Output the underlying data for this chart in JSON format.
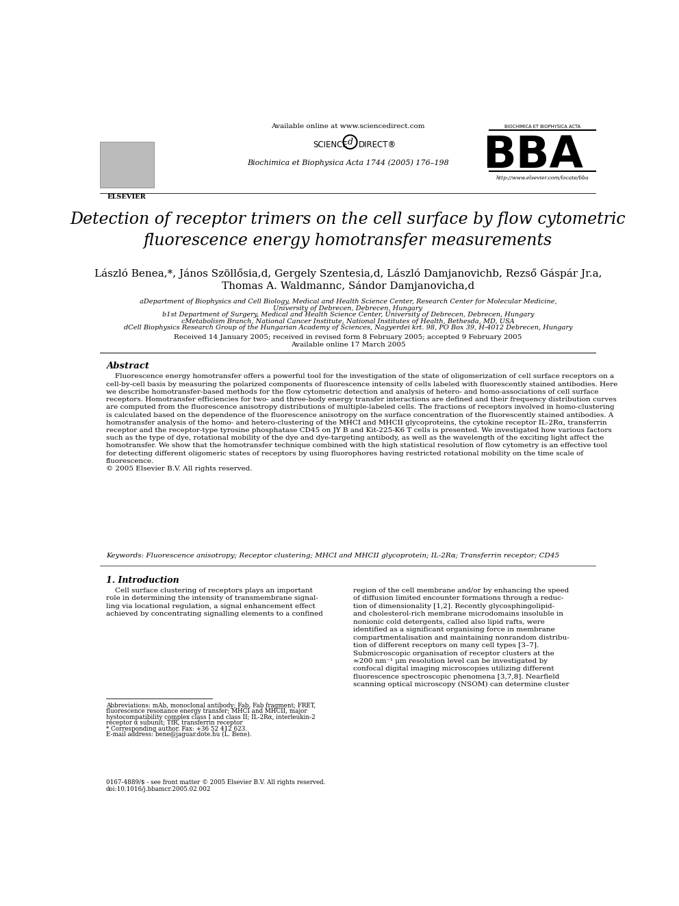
{
  "background_color": "#ffffff",
  "header": {
    "available_online": "Available online at www.sciencedirect.com",
    "journal": "Biochimica et Biophysica Acta 1744 (2005) 176–198",
    "url": "http://www.elsevier.com/locate/bba"
  },
  "title": "Detection of receptor trimers on the cell surface by flow cytometric\nfluorescence energy homotransfer measurements",
  "authors_line1": "László Benea,*, János Szöllősia,d, Gergely Szentesia,d, László Damjanovichb, Rezső Gáspár Jr.a,",
  "authors_line2": "Thomas A. Waldmannc, Sándor Damjanovicha,d",
  "affiliations": [
    "aDepartment of Biophysics and Cell Biology, Medical and Health Science Center, Research Center for Molecular Medicine,",
    "University of Debrecen, Debrecen, Hungary",
    "b1st Department of Surgery, Medical and Health Science Center, University of Debrecen, Debrecen, Hungary",
    "cMetabolism Branch, National Cancer Institute, National Institutes of Health, Bethesda, MD, USA",
    "dCell Biophysics Research Group of the Hungarian Academy of Sciences, Nagyerdei krt. 98, PO Box 39, H-4012 Debrecen, Hungary"
  ],
  "dates_line1": "Received 14 January 2005; received in revised form 8 February 2005; accepted 9 February 2005",
  "dates_line2": "Available online 17 March 2005",
  "abstract_title": "Abstract",
  "abstract_text": "    Fluorescence energy homotransfer offers a powerful tool for the investigation of the state of oligomerization of cell surface receptors on a\ncell-by-cell basis by measuring the polarized components of fluorescence intensity of cells labeled with fluorescently stained antibodies. Here\nwe describe homotransfer-based methods for the flow cytometric detection and analysis of hetero- and homo-associations of cell surface\nreceptors. Homotransfer efficiencies for two- and three-body energy transfer interactions are defined and their frequency distribution curves\nare computed from the fluorescence anisotropy distributions of multiple-labeled cells. The fractions of receptors involved in homo-clustering\nis calculated based on the dependence of the fluorescence anisotropy on the surface concentration of the fluorescently stained antibodies. A\nhomotransfer analysis of the homo- and hetero-clustering of the MHCI and MHCII glycoproteins, the cytokine receptor IL-2Rα, transferrin\nreceptor and the receptor-type tyrosine phosphatase CD45 on JY B and Kit-225-K6 T cells is presented. We investigated how various factors\nsuch as the type of dye, rotational mobility of the dye and dye-targeting antibody, as well as the wavelength of the exciting light affect the\nhomotransfer. We show that the homotransfer technique combined with the high statistical resolution of flow cytometry is an effective tool\nfor detecting different oligomeric states of receptors by using fluorophores having restricted rotational mobility on the time scale of\nfluorescence.\n© 2005 Elsevier B.V. All rights reserved.",
  "keywords": "Keywords: Fluorescence anisotropy; Receptor clustering; MHCI and MHCII glycoprotein; IL-2Rα; Transferrin receptor; CD45",
  "section1_title": "1. Introduction",
  "section1_col1": "    Cell surface clustering of receptors plays an important\nrole in determining the intensity of transmembrane signal-\nling via locational regulation, a signal enhancement effect\nachieved by concentrating signalling elements to a confined",
  "section1_col2": "region of the cell membrane and/or by enhancing the speed\nof diffusion limited encounter formations through a reduc-\ntion of dimensionality [1,2]. Recently glycosphingolipid-\nand cholesterol-rich membrane microdomains insoluble in\nnonionic cold detergents, called also lipid rafts, were\nidentified as a significant organising force in membrane\ncompartmentalisation and maintaining nonrandom distribu-\ntion of different receptors on many cell types [3–7].\nSubmicroscopic organisation of receptor clusters at the\n≈200 nm⁻¹ μm resolution level can be investigated by\nconfocal digital imaging microscopies utilizing different\nfluorescence spectroscopic phenomena [3,7,8]. Nearfield\nscanning optical microscopy (NSOM) can determine cluster",
  "footnotes_line1": "Abbreviations: mAb, monoclonal antibody; Fab, Fab fragment; FRET,",
  "footnotes_line2": "fluorescence resonance energy transfer; MHCI and MHCII, major",
  "footnotes_line3": "hystocompatibility complex class I and class II; IL-2Rα, interleukin-2",
  "footnotes_line4": "receptor α subunit; TfR, transferrin receptor",
  "footnotes_line5": "* Corresponding author. Fax: +36 52 412 623.",
  "footnotes_line6": "E-mail address: bene@jaguar.dote.hu (L. Bene).",
  "issn": "0167-4889/$ - see front matter © 2005 Elsevier B.V. All rights reserved.",
  "doi": "doi:10.1016/j.bbamcr.2005.02.002"
}
